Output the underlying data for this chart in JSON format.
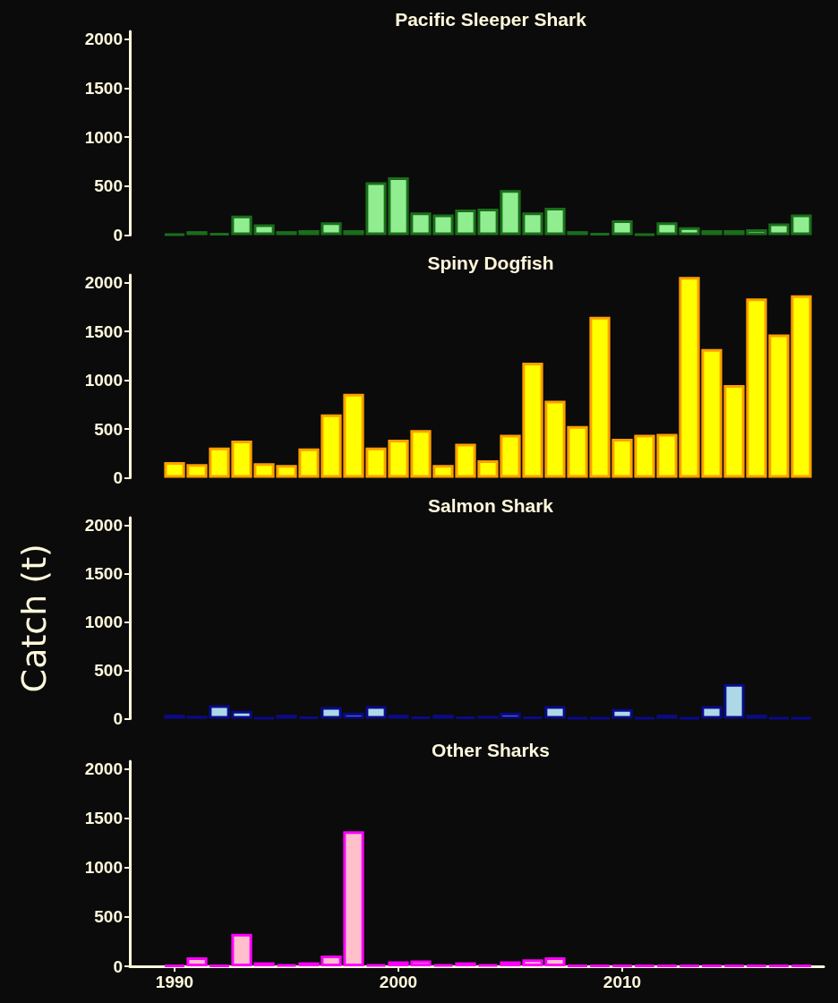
{
  "chart_data": [
    {
      "type": "bar",
      "title": "Pacific Sleeper Shark",
      "x": [
        1990,
        1991,
        1992,
        1993,
        1994,
        1995,
        1996,
        1997,
        1998,
        1999,
        2000,
        2001,
        2002,
        2003,
        2004,
        2005,
        2006,
        2007,
        2008,
        2009,
        2010,
        2011,
        2012,
        2013,
        2014,
        2015,
        2016,
        2017,
        2018
      ],
      "series": [
        {
          "colors": [
            "#1b6e1b",
            "#90ee90",
            "#1b6e1b",
            "#90ee90",
            "#90ee90",
            "#90ee90",
            "#90ee90",
            "#90ee90",
            "#90ee90",
            "#90ee90",
            "#90ee90",
            "#90ee90",
            "#90ee90",
            "#90ee90",
            "#90ee90",
            "#90ee90",
            "#90ee90",
            "#90ee90",
            "#90ee90",
            "#1b6e1b",
            "#90ee90",
            "#1b6e1b",
            "#90ee90",
            "#90ee90",
            "#90ee90",
            "#90ee90",
            "#90ee90",
            "#90ee90",
            "#90ee90"
          ],
          "values": [
            10,
            40,
            20,
            200,
            110,
            40,
            50,
            130,
            50,
            540,
            590,
            230,
            210,
            260,
            270,
            460,
            230,
            280,
            40,
            20,
            150,
            10,
            130,
            80,
            50,
            50,
            60,
            120,
            210
          ]
        }
      ],
      "ylim": [
        0,
        2080
      ],
      "yticks": [
        0,
        500,
        1000,
        1500,
        2000
      ],
      "tick_labels": "y",
      "grid": false
    },
    {
      "type": "bar",
      "title": "Spiny Dogfish",
      "x": [
        1990,
        1991,
        1992,
        1993,
        1994,
        1995,
        1996,
        1997,
        1998,
        1999,
        2000,
        2001,
        2002,
        2003,
        2004,
        2005,
        2006,
        2007,
        2008,
        2009,
        2010,
        2011,
        2012,
        2013,
        2014,
        2015,
        2016,
        2017,
        2018
      ],
      "series": [
        {
          "color": "#ffff00",
          "values": [
            160,
            140,
            310,
            380,
            150,
            130,
            300,
            650,
            860,
            310,
            390,
            490,
            130,
            350,
            180,
            440,
            1180,
            790,
            530,
            1650,
            400,
            440,
            450,
            2060,
            1320,
            950,
            1840,
            1470,
            1870
          ]
        }
      ],
      "ylim": [
        0,
        2080
      ],
      "yticks": [
        0,
        500,
        1000,
        1500,
        2000
      ],
      "tick_labels": "y",
      "grid": false
    },
    {
      "type": "bar",
      "title": "Salmon Shark",
      "ylabel": "Catch (t)",
      "x": [
        1990,
        1991,
        1992,
        1993,
        1994,
        1995,
        1996,
        1997,
        1998,
        1999,
        2000,
        2001,
        2002,
        2003,
        2004,
        2005,
        2006,
        2007,
        2008,
        2009,
        2010,
        2011,
        2012,
        2013,
        2014,
        2015,
        2016,
        2017,
        2018
      ],
      "series": [
        {
          "colors": [
            "#add8e6",
            "#add8e6",
            "#add8e6",
            "#add8e6",
            "#0a0a8c",
            "#add8e6",
            "#0a0a8c",
            "#add8e6",
            "#add8e6",
            "#add8e6",
            "#add8e6",
            "#0a0a8c",
            "#add8e6",
            "#0a0a8c",
            "#add8e6",
            "#add8e6",
            "#0a0a8c",
            "#add8e6",
            "#0a0a8c",
            "#0a0a8c",
            "#add8e6",
            "#0a0a8c",
            "#add8e6",
            "#0a0a8c",
            "#add8e6",
            "#add8e6",
            "#add8e6",
            "#0a0a8c",
            "#0a0a8c"
          ],
          "values": [
            40,
            30,
            140,
            80,
            10,
            40,
            20,
            120,
            60,
            130,
            40,
            20,
            40,
            20,
            30,
            60,
            20,
            130,
            10,
            10,
            100,
            10,
            40,
            10,
            130,
            360,
            40,
            10,
            10
          ]
        }
      ],
      "ylim": [
        0,
        2080
      ],
      "yticks": [
        0,
        500,
        1000,
        1500,
        2000
      ],
      "tick_labels": "y",
      "grid": false
    },
    {
      "type": "bar",
      "title": "Other Sharks",
      "x": [
        1990,
        1991,
        1992,
        1993,
        1994,
        1995,
        1996,
        1997,
        1998,
        1999,
        2000,
        2001,
        2002,
        2003,
        2004,
        2005,
        2006,
        2007,
        2008,
        2009,
        2010,
        2011,
        2012,
        2013,
        2014,
        2015,
        2016,
        2017,
        2018
      ],
      "series": [
        {
          "colors": [
            "#ff00ff",
            "#ffc0cb",
            "#ff00ff",
            "#ffc0cb",
            "#ffc0cb",
            "#ff00ff",
            "#ffc0cb",
            "#ffc0cb",
            "#ffc0cb",
            "#ff00ff",
            "#ffc0cb",
            "#ffc0cb",
            "#ff00ff",
            "#ffc0cb",
            "#ff00ff",
            "#ffc0cb",
            "#ffc0cb",
            "#ffc0cb",
            "#ff00ff",
            "#ff00ff",
            "#ff00ff",
            "#ff00ff",
            "#ff00ff",
            "#ff00ff",
            "#ff00ff",
            "#ff00ff",
            "#ff00ff",
            "#ff00ff",
            "#ff00ff"
          ],
          "values": [
            10,
            90,
            10,
            330,
            40,
            20,
            40,
            110,
            1370,
            20,
            50,
            60,
            20,
            40,
            20,
            50,
            70,
            90,
            10,
            10,
            10,
            10,
            10,
            10,
            10,
            10,
            10,
            10,
            10
          ]
        }
      ],
      "xlim": [
        1988,
        2019
      ],
      "xticks": [
        1990,
        2000,
        2010
      ],
      "ylim": [
        0,
        2080
      ],
      "yticks": [
        0,
        500,
        1000,
        1500,
        2000
      ],
      "grid": false
    }
  ]
}
